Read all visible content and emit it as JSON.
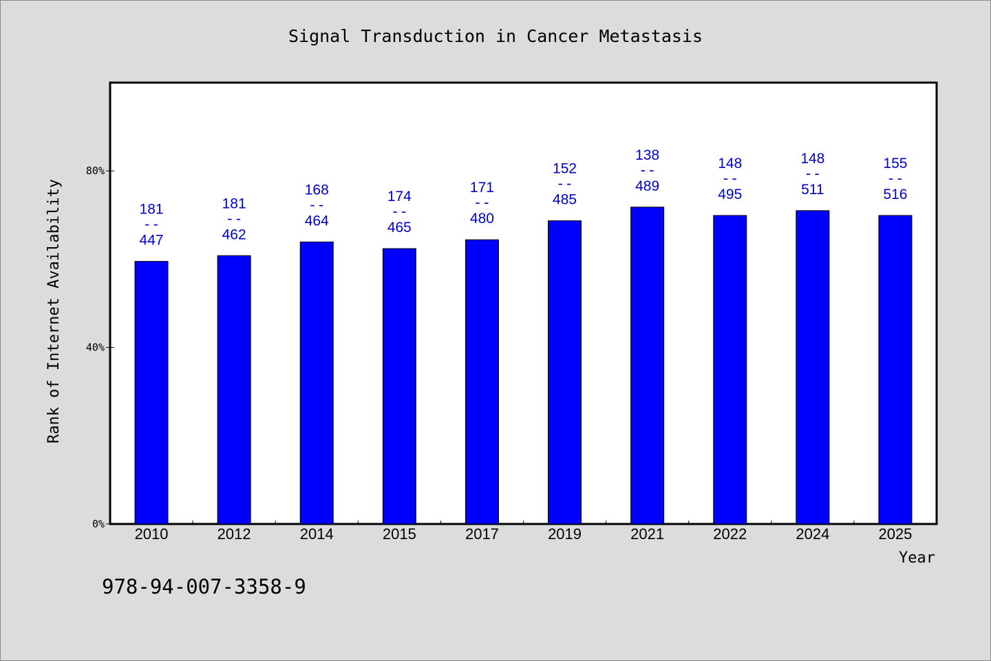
{
  "chart_data": {
    "type": "bar",
    "title": "Signal Transduction in Cancer Metastasis",
    "xlabel": "Year",
    "ylabel": "Rank of Internet Availability",
    "categories": [
      "2010",
      "2012",
      "2014",
      "2015",
      "2017",
      "2019",
      "2021",
      "2022",
      "2024",
      "2025"
    ],
    "values": [
      59.5,
      60.8,
      63.9,
      62.4,
      64.4,
      68.7,
      71.8,
      69.9,
      71.0,
      69.9
    ],
    "label_top": [
      "181",
      "181",
      "168",
      "174",
      "171",
      "152",
      "138",
      "148",
      "148",
      "155"
    ],
    "label_separator": "--",
    "label_bottom": [
      "447",
      "462",
      "464",
      "465",
      "480",
      "485",
      "489",
      "495",
      "511",
      "516"
    ],
    "yticks": [
      0,
      40,
      80
    ],
    "ytick_labels": [
      "0%",
      "40%",
      "80%"
    ],
    "ylim": [
      0,
      100
    ],
    "grid": false,
    "bar_color": "#0000ff",
    "label_color": "#0000cc",
    "plot_background": "#ffffff",
    "page_background": "#dcdcdc"
  },
  "footer": {
    "code": "978-94-007-3358-9"
  }
}
